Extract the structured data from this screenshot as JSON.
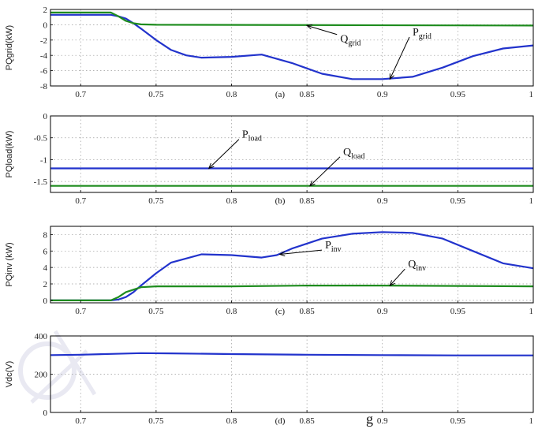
{
  "colors": {
    "blue": "#2233cc",
    "green": "#1e8c1e",
    "watermark": "#d8d8e8"
  },
  "stray_glyph": "g",
  "chart_data": [
    {
      "type": "line",
      "id": "a",
      "caption": "(a)",
      "ylabel": "PQgrid(kW)",
      "xlim": [
        0.68,
        1.0
      ],
      "ylim": [
        -8,
        2
      ],
      "xticks": [
        "0.7",
        "0.75",
        "0.8",
        "0.85",
        "0.9",
        "0.95",
        "1"
      ],
      "xtick_values": [
        0.7,
        0.75,
        0.8,
        0.85,
        0.9,
        0.95,
        1.0
      ],
      "yticks": [
        "2",
        "0",
        "-2",
        "-4",
        "-6",
        "-8"
      ],
      "ytick_values": [
        2,
        0,
        -2,
        -4,
        -6,
        -8
      ],
      "grid": true,
      "series": [
        {
          "label": "Pgrid",
          "color": "#2233cc",
          "x": [
            0.68,
            0.72,
            0.725,
            0.73,
            0.735,
            0.74,
            0.75,
            0.76,
            0.77,
            0.78,
            0.8,
            0.82,
            0.84,
            0.86,
            0.88,
            0.9,
            0.92,
            0.94,
            0.96,
            0.98,
            1.0
          ],
          "y": [
            1.3,
            1.3,
            1.1,
            0.8,
            0.2,
            -0.5,
            -2.0,
            -3.3,
            -4.0,
            -4.3,
            -4.2,
            -3.9,
            -5.0,
            -6.4,
            -7.1,
            -7.1,
            -6.8,
            -5.6,
            -4.1,
            -3.1,
            -2.7
          ]
        },
        {
          "label": "Qgrid",
          "color": "#1e8c1e",
          "x": [
            0.68,
            0.72,
            0.725,
            0.73,
            0.735,
            0.74,
            0.75,
            1.0
          ],
          "y": [
            1.6,
            1.6,
            1.1,
            0.5,
            0.2,
            0.05,
            0.0,
            -0.1
          ]
        }
      ],
      "annotations": [
        {
          "base": "Q",
          "sub": "grid",
          "series": "Qgrid",
          "point": [
            0.85,
            -0.1
          ],
          "text_at": [
            0.872,
            -2.3
          ]
        },
        {
          "base": "P",
          "sub": "grid",
          "series": "Pgrid",
          "point": [
            0.905,
            -7.1
          ],
          "text_at": [
            0.92,
            -1.4
          ]
        }
      ]
    },
    {
      "type": "line",
      "id": "b",
      "caption": "(b)",
      "ylabel": "PQload(kW)",
      "xlim": [
        0.68,
        1.0
      ],
      "ylim": [
        -1.75,
        0
      ],
      "xticks": [
        "0.7",
        "0.75",
        "0.8",
        "0.85",
        "0.9",
        "0.95",
        "1"
      ],
      "xtick_values": [
        0.7,
        0.75,
        0.8,
        0.85,
        0.9,
        0.95,
        1.0
      ],
      "yticks": [
        "0",
        "-0.5",
        "-1",
        "-1.5"
      ],
      "ytick_values": [
        0,
        -0.5,
        -1,
        -1.5
      ],
      "grid": true,
      "series": [
        {
          "label": "Pload",
          "color": "#2233cc",
          "x": [
            0.68,
            1.0
          ],
          "y": [
            -1.2,
            -1.2
          ]
        },
        {
          "label": "Qload",
          "color": "#1e8c1e",
          "x": [
            0.68,
            1.0
          ],
          "y": [
            -1.6,
            -1.6
          ]
        }
      ],
      "annotations": [
        {
          "base": "P",
          "sub": "load",
          "series": "Pload",
          "point": [
            0.785,
            -1.2
          ],
          "text_at": [
            0.807,
            -0.5
          ]
        },
        {
          "base": "Q",
          "sub": "load",
          "series": "Qload",
          "point": [
            0.852,
            -1.6
          ],
          "text_at": [
            0.874,
            -0.9
          ]
        }
      ]
    },
    {
      "type": "line",
      "id": "c",
      "caption": "(c)",
      "ylabel": "PQinv (kW)",
      "xlim": [
        0.68,
        1.0
      ],
      "ylim": [
        -0.3,
        9
      ],
      "xticks": [
        "0.7",
        "0.75",
        "0.8",
        "0.85",
        "0.9",
        "0.95",
        "1"
      ],
      "xtick_values": [
        0.7,
        0.75,
        0.8,
        0.85,
        0.9,
        0.95,
        1.0
      ],
      "yticks": [
        "8",
        "6",
        "4",
        "2",
        "0"
      ],
      "ytick_values": [
        8,
        6,
        4,
        2,
        0
      ],
      "grid": true,
      "series": [
        {
          "label": "Pinv",
          "color": "#2233cc",
          "x": [
            0.68,
            0.72,
            0.725,
            0.73,
            0.735,
            0.74,
            0.75,
            0.76,
            0.78,
            0.8,
            0.82,
            0.83,
            0.84,
            0.86,
            0.88,
            0.9,
            0.92,
            0.94,
            0.96,
            0.98,
            1.0
          ],
          "y": [
            0,
            0,
            0.1,
            0.4,
            1.0,
            1.8,
            3.3,
            4.6,
            5.6,
            5.5,
            5.2,
            5.5,
            6.3,
            7.5,
            8.1,
            8.3,
            8.2,
            7.5,
            6.0,
            4.5,
            3.9
          ]
        },
        {
          "label": "Qinv",
          "color": "#1e8c1e",
          "x": [
            0.68,
            0.72,
            0.725,
            0.73,
            0.735,
            0.74,
            0.75,
            0.8,
            0.85,
            0.9,
            0.95,
            1.0
          ],
          "y": [
            0,
            0,
            0.4,
            1.0,
            1.3,
            1.6,
            1.7,
            1.7,
            1.8,
            1.8,
            1.75,
            1.7
          ]
        }
      ],
      "annotations": [
        {
          "base": "P",
          "sub": "inv",
          "series": "Pinv",
          "point": [
            0.832,
            5.6
          ],
          "text_at": [
            0.862,
            6.3
          ]
        },
        {
          "base": "Q",
          "sub": "inv",
          "series": "Qinv",
          "point": [
            0.905,
            1.8
          ],
          "text_at": [
            0.917,
            4.0
          ]
        }
      ]
    },
    {
      "type": "line",
      "id": "d",
      "caption": "(d)",
      "ylabel": "Vdc(V)",
      "xlim": [
        0.68,
        1.0
      ],
      "ylim": [
        0,
        400
      ],
      "xticks": [
        "0.7",
        "0.75",
        "0.8",
        "0.85",
        "0.9",
        "0.95",
        "1"
      ],
      "xtick_values": [
        0.7,
        0.75,
        0.8,
        0.85,
        0.9,
        0.95,
        1.0
      ],
      "yticks": [
        "400",
        "200",
        "0"
      ],
      "ytick_values": [
        400,
        200,
        0
      ],
      "grid": true,
      "series": [
        {
          "label": "Vdc",
          "color": "#2233cc",
          "x": [
            0.68,
            0.7,
            0.72,
            0.74,
            0.76,
            0.8,
            0.85,
            0.9,
            0.95,
            1.0
          ],
          "y": [
            300,
            302,
            306,
            310,
            309,
            305,
            302,
            300,
            298,
            298
          ]
        }
      ],
      "annotations": []
    }
  ]
}
